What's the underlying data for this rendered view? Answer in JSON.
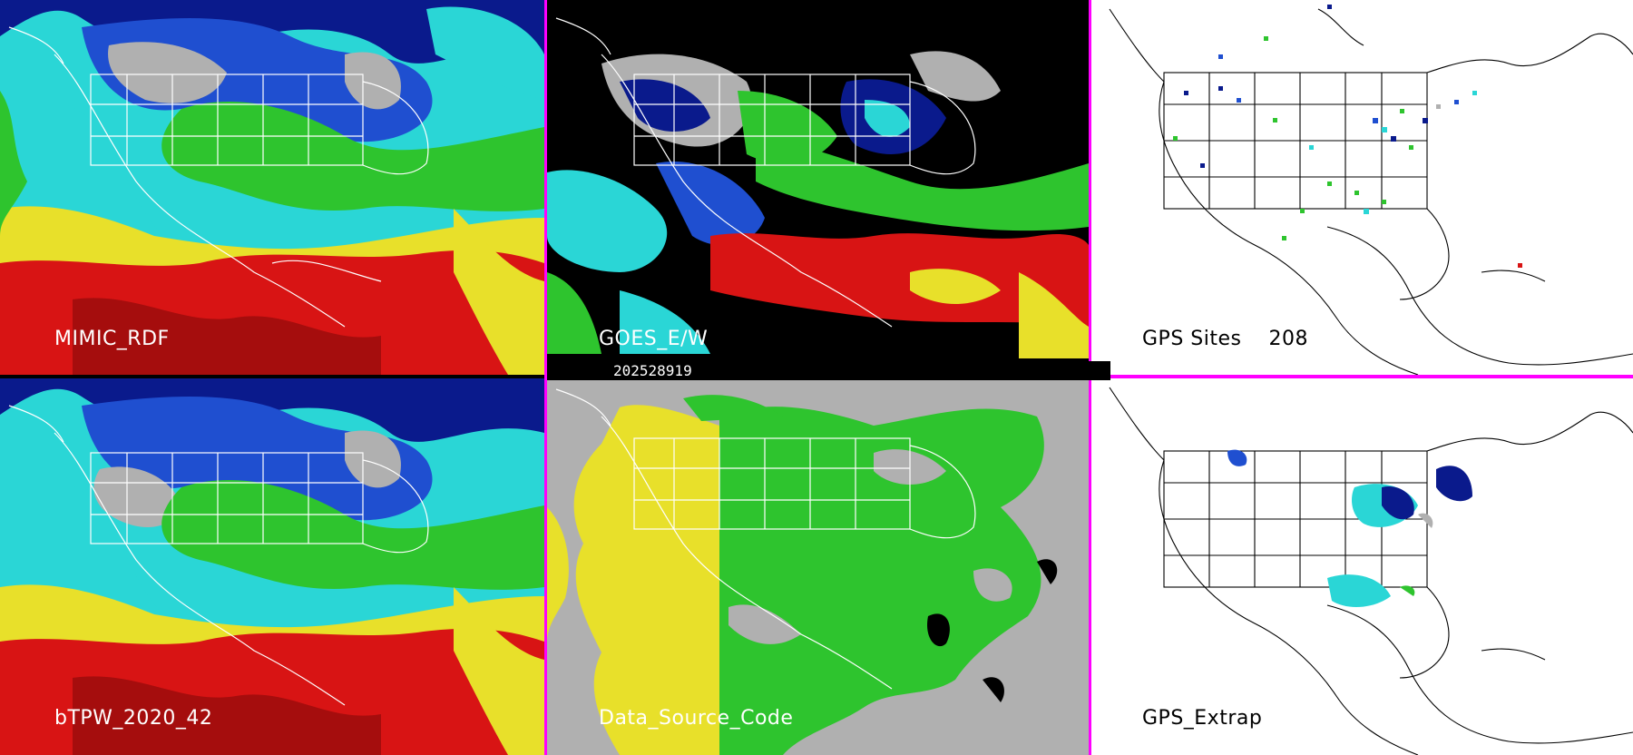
{
  "panels": [
    {
      "id": "mimic",
      "label": "MIMIC_RDF",
      "theme": "tpw"
    },
    {
      "id": "goes",
      "label": "GOES_E/W",
      "theme": "goes"
    },
    {
      "id": "gps-sites",
      "label": "GPS Sites",
      "count": "208",
      "theme": "gps"
    },
    {
      "id": "btpw",
      "label": "bTPW_2020_42",
      "theme": "tpw"
    },
    {
      "id": "dsc",
      "label": "Data_Source_Code",
      "theme": "dsc"
    },
    {
      "id": "gps-extrap",
      "label": "GPS_Extrap",
      "theme": "gpsx"
    }
  ],
  "timestamp": "202528919",
  "colors": {
    "divider": "#ff00ff",
    "navy": "#0a1a8c",
    "blue": "#1f4fd0",
    "cyan": "#2ad6d6",
    "green": "#2ec42e",
    "yellow": "#e8e02a",
    "red": "#d81414",
    "gray": "#b0b0b0",
    "white_land": "#ffffff"
  }
}
